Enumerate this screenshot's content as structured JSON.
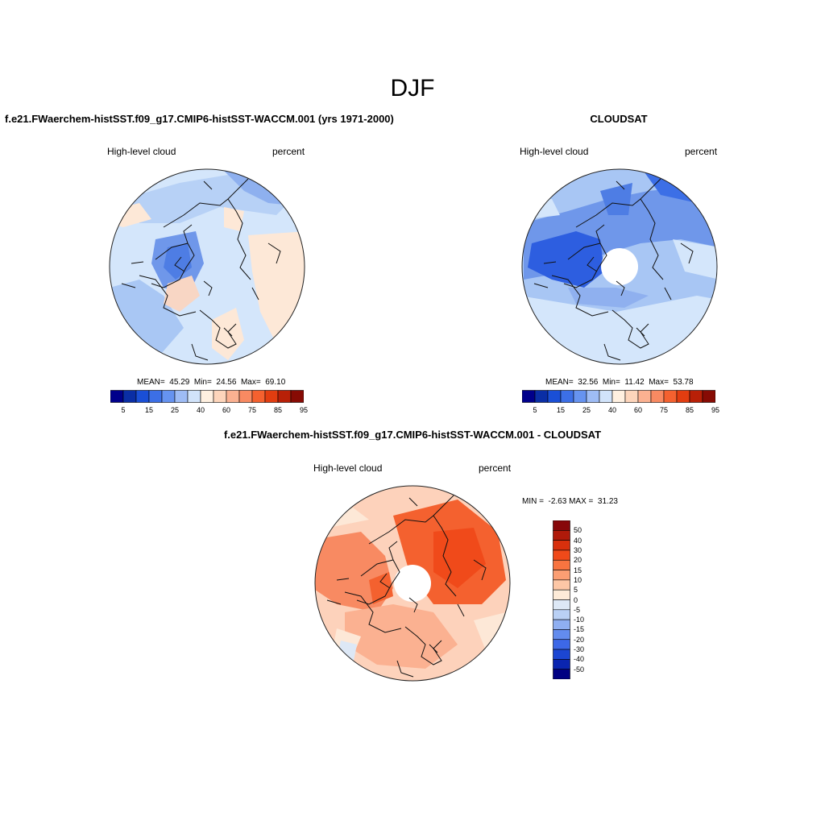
{
  "figure": {
    "title": "DJF"
  },
  "panels": [
    {
      "title": "f.e21.FWaerchem-histSST.f09_g17.CMIP6-histSST-WACCM.001 (yrs 1971-2000)",
      "left_label": "High-level cloud",
      "right_label": "percent",
      "stats": "MEAN=  45.29  Min=  24.56  Max=  69.10"
    },
    {
      "title": "CLOUDSAT",
      "left_label": "High-level cloud",
      "right_label": "percent",
      "stats": "MEAN=  32.56  Min=  11.42  Max=  53.78"
    },
    {
      "title": "f.e21.FWaerchem-histSST.f09_g17.CMIP6-histSST-WACCM.001 - CLOUDSAT",
      "left_label": "High-level cloud",
      "right_label": "percent",
      "stats": "MIN =  -2.63 MAX =  31.23"
    }
  ],
  "colorbars": {
    "absolute": {
      "colors": [
        "#00008b",
        "#0a2ea5",
        "#1a4fd6",
        "#3c6fe6",
        "#6693f0",
        "#9ebcf5",
        "#d1e3fa",
        "#fff0e0",
        "#fdd5bb",
        "#fbb191",
        "#f88a62",
        "#f4612f",
        "#e23d10",
        "#b82007",
        "#870b04"
      ],
      "tick_labels": [
        "5",
        "15",
        "25",
        "40",
        "60",
        "75",
        "85",
        "95"
      ]
    },
    "difference": {
      "colors": [
        "#87080a",
        "#b01a0a",
        "#d8300d",
        "#f04a1a",
        "#f87440",
        "#fb9e73",
        "#fdc7a6",
        "#fdebd8",
        "#dde8f6",
        "#b9d0f5",
        "#8faff2",
        "#638cee",
        "#3d68e7",
        "#1c46d2",
        "#0a25b0",
        "#000083"
      ],
      "tick_labels": [
        "50",
        "40",
        "30",
        "20",
        "15",
        "10",
        "5",
        "0",
        "-5",
        "-10",
        "-15",
        "-20",
        "-30",
        "-40",
        "-50"
      ]
    }
  }
}
